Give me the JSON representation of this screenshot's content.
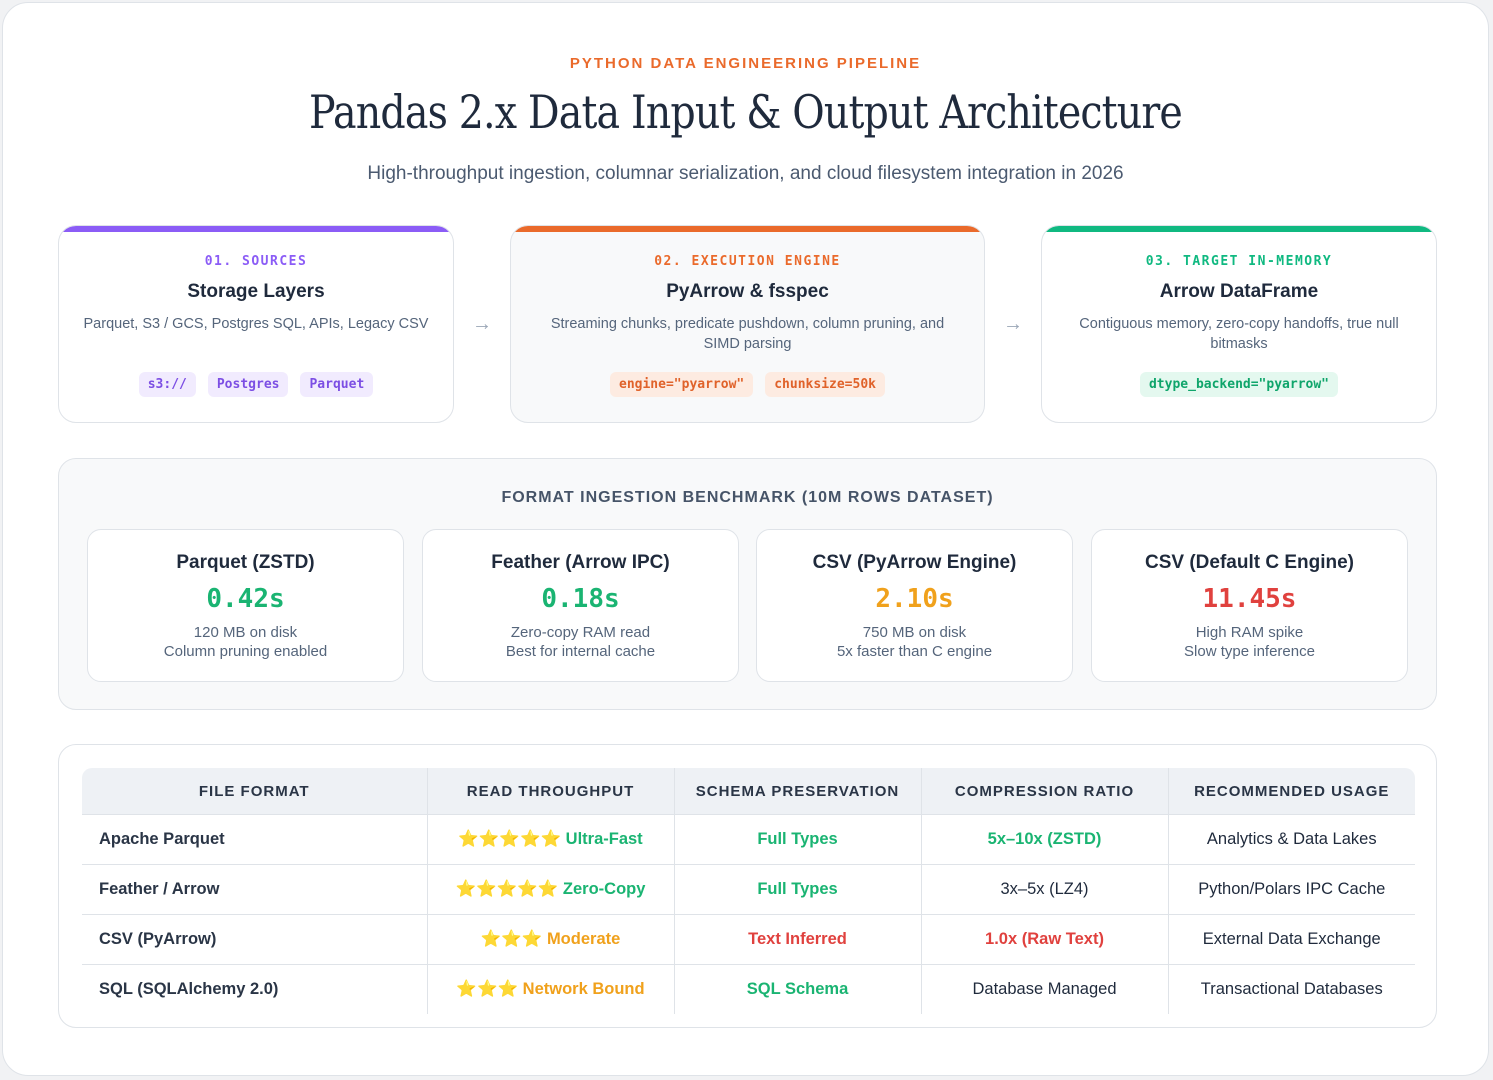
{
  "header": {
    "eyebrow": "PYTHON DATA ENGINEERING PIPELINE",
    "title": "Pandas 2.x Data Input & Output Architecture",
    "subtitle": "High-throughput ingestion, columnar serialization, and cloud filesystem integration in 2026"
  },
  "pipeline": {
    "arrow_glyph": "→",
    "stages": [
      {
        "step": "01. SOURCES",
        "title": "Storage Layers",
        "desc": "Parquet, S3 / GCS, Postgres SQL, APIs, Legacy CSV",
        "chips": [
          "s3://",
          "Postgres",
          "Parquet"
        ],
        "accent": "#8b5cf6"
      },
      {
        "step": "02. EXECUTION ENGINE",
        "title": "PyArrow & fsspec",
        "desc": "Streaming chunks, predicate pushdown, column pruning, and SIMD parsing",
        "chips": [
          "engine=\"pyarrow\"",
          "chunksize=50k"
        ],
        "accent": "#ea6a2b"
      },
      {
        "step": "03. TARGET IN-MEMORY",
        "title": "Arrow DataFrame",
        "desc": "Contiguous memory, zero-copy handoffs, true null bitmasks",
        "chips": [
          "dtype_backend=\"pyarrow\""
        ],
        "accent": "#10b981"
      }
    ]
  },
  "benchmark": {
    "title": "FORMAT INGESTION BENCHMARK (10M ROWS DATASET)",
    "cards": [
      {
        "name": "Parquet (ZSTD)",
        "value": "0.42s",
        "color": "#1ab472",
        "note1": "120 MB on disk",
        "note2": "Column pruning enabled"
      },
      {
        "name": "Feather (Arrow IPC)",
        "value": "0.18s",
        "color": "#1ab472",
        "note1": "Zero-copy RAM read",
        "note2": "Best for internal cache"
      },
      {
        "name": "CSV (PyArrow Engine)",
        "value": "2.10s",
        "color": "#f0a11c",
        "note1": "750 MB on disk",
        "note2": "5x faster than C engine"
      },
      {
        "name": "CSV (Default C Engine)",
        "value": "11.45s",
        "color": "#e0413e",
        "note1": "High RAM spike",
        "note2": "Slow type inference"
      }
    ]
  },
  "comparison": {
    "headers": [
      "FILE FORMAT",
      "READ THROUGHPUT",
      "SCHEMA PRESERVATION",
      "COMPRESSION RATIO",
      "RECOMMENDED USAGE"
    ],
    "rows": [
      {
        "format": "Apache Parquet",
        "stars": "⭐⭐⭐⭐⭐",
        "throughput": "Ultra-Fast",
        "schema": "Full Types",
        "compression": "5x–10x (ZSTD)",
        "usage": "Analytics & Data Lakes"
      },
      {
        "format": "Feather / Arrow",
        "stars": "⭐⭐⭐⭐⭐",
        "throughput": "Zero-Copy",
        "schema": "Full Types",
        "compression": "3x–5x (LZ4)",
        "usage": "Python/Polars IPC Cache"
      },
      {
        "format": "CSV (PyArrow)",
        "stars": "⭐⭐⭐",
        "throughput": "Moderate",
        "schema": "Text Inferred",
        "compression": "1.0x (Raw Text)",
        "usage": "External Data Exchange"
      },
      {
        "format": "SQL (SQLAlchemy 2.0)",
        "stars": "⭐⭐⭐",
        "throughput": "Network Bound",
        "schema": "SQL Schema",
        "compression": "Database Managed",
        "usage": "Transactional Databases"
      }
    ]
  }
}
